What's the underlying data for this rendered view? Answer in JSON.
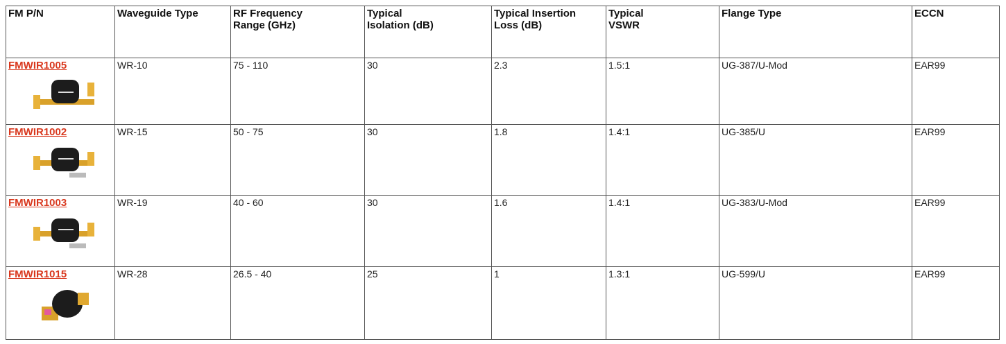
{
  "table": {
    "headers": [
      "FM P/N",
      "Waveguide Type",
      "RF Frequency Range (GHz)",
      "Typical Isolation (dB)",
      "Typical Insertion Loss (dB)",
      "Typical VSWR",
      "Flange Type",
      "ECCN"
    ],
    "rows": [
      [
        "FMWIR1005",
        "WR-10",
        "75 - 110",
        "30",
        "2.3",
        "1.5:1",
        "UG-387/U-Mod",
        "EAR99"
      ],
      [
        "FMWIR1002",
        "WR-15",
        "50 - 75",
        "30",
        "1.8",
        "1.4:1",
        "UG-385/U",
        "EAR99"
      ],
      [
        "FMWIR1003",
        "WR-19",
        "40 - 60",
        "30",
        "1.6",
        "1.4:1",
        "UG-383/U-Mod",
        "EAR99"
      ],
      [
        "FMWIR1015",
        "WR-28",
        "26.5 - 40",
        "25",
        "1",
        "1.3:1",
        "UG-599/U",
        "EAR99"
      ]
    ]
  }
}
